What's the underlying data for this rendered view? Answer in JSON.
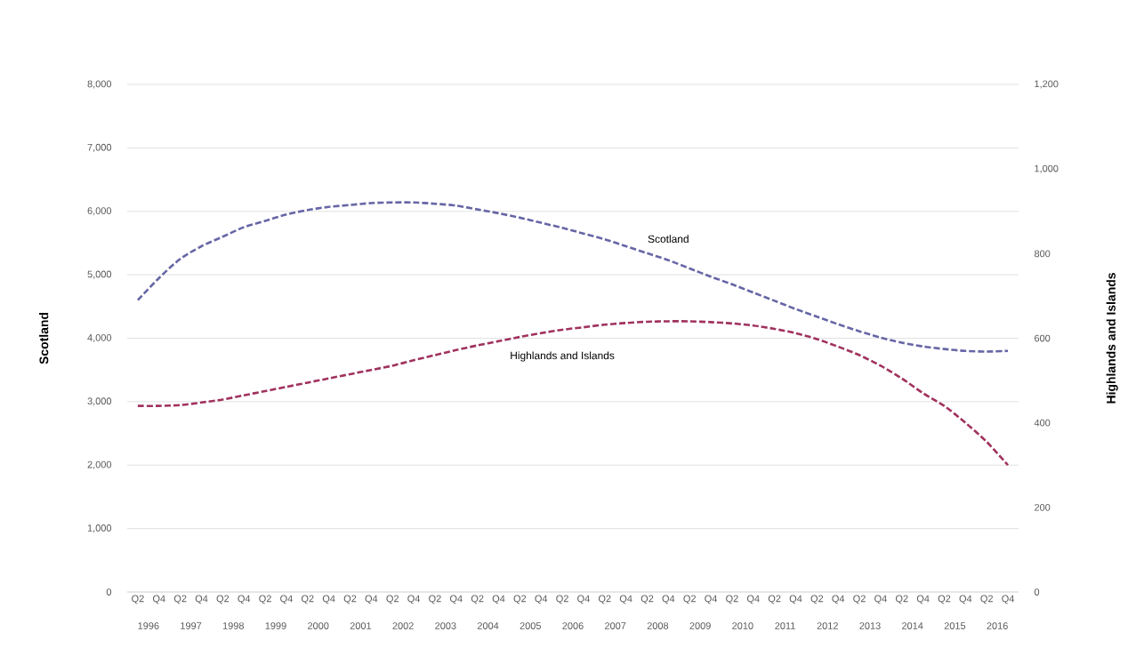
{
  "chart_data": {
    "type": "line",
    "ylabel": "Scotland",
    "y2label": "Highlands and Islands",
    "grid": "y",
    "categories": [
      "Q2",
      "Q4",
      "Q2",
      "Q4",
      "Q2",
      "Q4",
      "Q2",
      "Q4",
      "Q2",
      "Q4",
      "Q2",
      "Q4",
      "Q2",
      "Q4",
      "Q2",
      "Q4",
      "Q2",
      "Q4",
      "Q2",
      "Q4",
      "Q2",
      "Q4",
      "Q2",
      "Q4",
      "Q2",
      "Q4",
      "Q2",
      "Q4",
      "Q2",
      "Q4",
      "Q2",
      "Q4",
      "Q2",
      "Q4",
      "Q2",
      "Q4",
      "Q2",
      "Q4",
      "Q2",
      "Q4",
      "Q2",
      "Q4"
    ],
    "annotations": [
      "1996",
      "1997",
      "1998",
      "1999",
      "2000",
      "2001",
      "2002",
      "2003",
      "2004",
      "2005",
      "2006",
      "2007",
      "2008",
      "2009",
      "2010",
      "2011",
      "2012",
      "2013",
      "2014",
      "2015",
      "2016"
    ],
    "ylim": [
      0,
      8000
    ],
    "yticks": [
      0,
      {
        "value": 1000,
        "label": "1,000"
      },
      {
        "value": 2000,
        "label": "2,000"
      },
      {
        "value": 3000,
        "label": "3,000"
      },
      {
        "value": 4000,
        "label": "4,000"
      },
      {
        "value": 5000,
        "label": "5,000"
      },
      {
        "value": 6000,
        "label": "6,000"
      },
      {
        "value": 7000,
        "label": "7,000"
      },
      {
        "value": 8000,
        "label": "8,000"
      }
    ],
    "y2lim": [
      0,
      1200
    ],
    "y2ticks": [
      0,
      200,
      400,
      600,
      800,
      {
        "value": 1000,
        "label": "1,000"
      },
      {
        "value": 1200,
        "label": "1,200"
      }
    ],
    "series": [
      {
        "name": "Scotland",
        "color": "#6666a6",
        "line_style": "dashed",
        "values": [
          4600,
          4950,
          5250,
          5450,
          5600,
          5750,
          5850,
          5950,
          6020,
          6070,
          6100,
          6130,
          6140,
          6140,
          6120,
          6090,
          6030,
          5970,
          5900,
          5820,
          5740,
          5650,
          5560,
          5450,
          5340,
          5230,
          5100,
          4970,
          4850,
          4720,
          4590,
          4460,
          4340,
          4220,
          4110,
          4010,
          3930,
          3870,
          3830,
          3800,
          3790,
          3800
        ]
      },
      {
        "name": "Highlands and Islands",
        "color": "#a0325e",
        "line_style": "dashed",
        "axis": "y2",
        "values": [
          440,
          440,
          442,
          448,
          455,
          465,
          475,
          485,
          495,
          505,
          515,
          525,
          535,
          548,
          560,
          572,
          583,
          593,
          603,
          612,
          620,
          626,
          632,
          636,
          639,
          640,
          640,
          638,
          635,
          630,
          622,
          612,
          598,
          580,
          560,
          535,
          505,
          470,
          440,
          400,
          355,
          300
        ]
      }
    ]
  }
}
